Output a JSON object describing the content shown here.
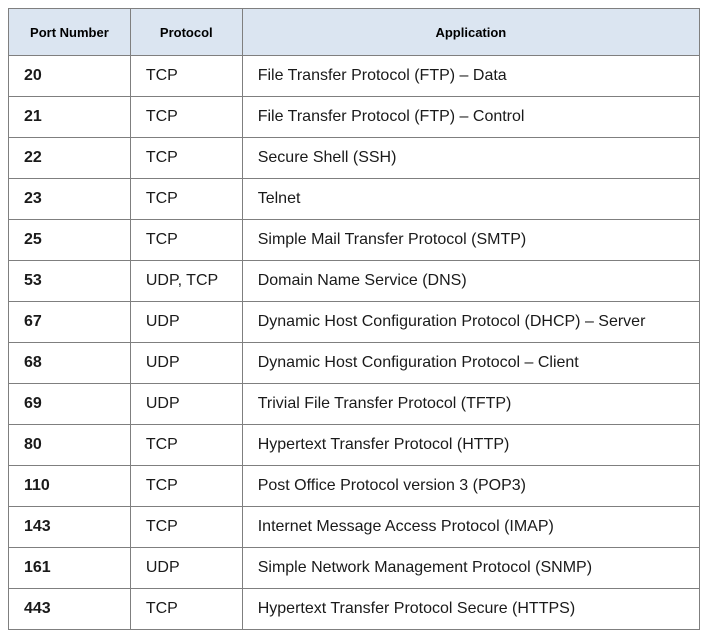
{
  "table": {
    "header": [
      "Port Number",
      "Protocol",
      "Application"
    ],
    "rows": [
      [
        "20",
        "TCP",
        "File Transfer Protocol (FTP) – Data"
      ],
      [
        "21",
        "TCP",
        "File Transfer Protocol (FTP) – Control"
      ],
      [
        "22",
        "TCP",
        "Secure Shell (SSH)"
      ],
      [
        "23",
        "TCP",
        "Telnet"
      ],
      [
        "25",
        "TCP",
        "Simple Mail Transfer Protocol (SMTP)"
      ],
      [
        "53",
        "UDP, TCP",
        "Domain Name Service (DNS)"
      ],
      [
        "67",
        "UDP",
        "Dynamic Host Configuration Protocol (DHCP) – Server"
      ],
      [
        "68",
        "UDP",
        "Dynamic Host Configuration Protocol – Client"
      ],
      [
        "69",
        "UDP",
        "Trivial File Transfer Protocol (TFTP)"
      ],
      [
        "80",
        "TCP",
        "Hypertext Transfer Protocol (HTTP)"
      ],
      [
        "110",
        "TCP",
        "Post Office Protocol version 3 (POP3)"
      ],
      [
        "143",
        "TCP",
        "Internet Message Access Protocol (IMAP)"
      ],
      [
        "161",
        "UDP",
        "Simple Network Management Protocol (SNMP)"
      ],
      [
        "443",
        "TCP",
        "Hypertext Transfer Protocol Secure (HTTPS)"
      ]
    ]
  }
}
